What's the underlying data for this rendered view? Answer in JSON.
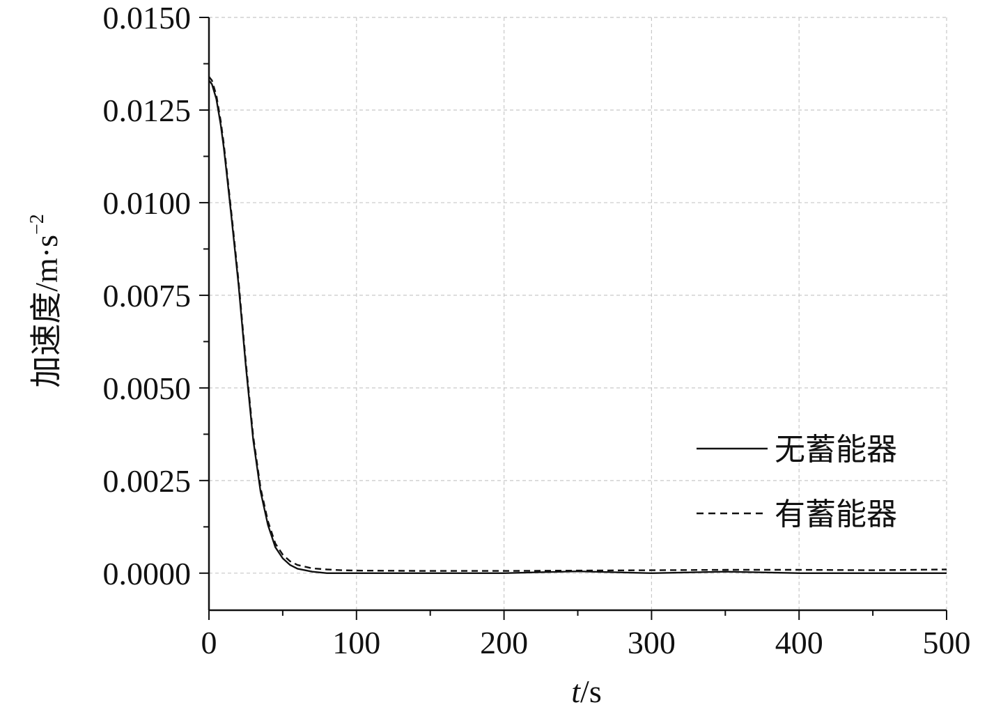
{
  "chart_data": {
    "type": "line",
    "xlabel": {
      "italic": "t",
      "rest": "/s"
    },
    "ylabel": {
      "main": "加速度/m·s",
      "sup": "−2"
    },
    "xlim": [
      0,
      500
    ],
    "ylim": [
      -0.001,
      0.015
    ],
    "xticks": [
      0,
      100,
      200,
      300,
      400,
      500
    ],
    "xtick_labels": [
      "0",
      "100",
      "200",
      "300",
      "400",
      "500"
    ],
    "yticks": [
      0.0,
      0.0025,
      0.005,
      0.0075,
      0.01,
      0.0125,
      0.015
    ],
    "ytick_labels": [
      "0.0000",
      "0.0025",
      "0.0050",
      "0.0075",
      "0.0100",
      "0.0125",
      "0.0150"
    ],
    "grid": true,
    "legend_position": "right",
    "series": [
      {
        "name": "无蓄能器",
        "style": "solid",
        "color": "#111111",
        "x": [
          0,
          2,
          5,
          8,
          10,
          12,
          15,
          20,
          25,
          30,
          35,
          40,
          45,
          50,
          55,
          60,
          70,
          80,
          90,
          100,
          150,
          200,
          250,
          300,
          350,
          400,
          450,
          500
        ],
        "y": [
          0.0133,
          0.0132,
          0.0128,
          0.0121,
          0.0115,
          0.0108,
          0.0097,
          0.0078,
          0.0056,
          0.0036,
          0.0022,
          0.0013,
          0.0007,
          0.0004,
          0.00022,
          0.00012,
          4e-05,
          0.0,
          0.0,
          0.0,
          0.0,
          0.0,
          5e-05,
          0.0,
          4e-05,
          0.0,
          0.0,
          0.0
        ]
      },
      {
        "name": "有蓄能器",
        "style": "dashed",
        "color": "#111111",
        "x": [
          0,
          2,
          5,
          8,
          10,
          12,
          15,
          20,
          25,
          30,
          35,
          40,
          45,
          50,
          55,
          60,
          70,
          80,
          90,
          100,
          150,
          200,
          250,
          300,
          350,
          400,
          450,
          500
        ],
        "y": [
          0.0134,
          0.0133,
          0.0129,
          0.0122,
          0.0116,
          0.0109,
          0.0098,
          0.0079,
          0.0057,
          0.0037,
          0.0023,
          0.0014,
          0.0008,
          0.0005,
          0.00032,
          0.00022,
          0.00013,
          0.0001,
          8e-05,
          7e-05,
          6e-05,
          6e-05,
          7e-05,
          8e-05,
          9e-05,
          9e-05,
          8e-05,
          0.0001
        ]
      }
    ]
  }
}
